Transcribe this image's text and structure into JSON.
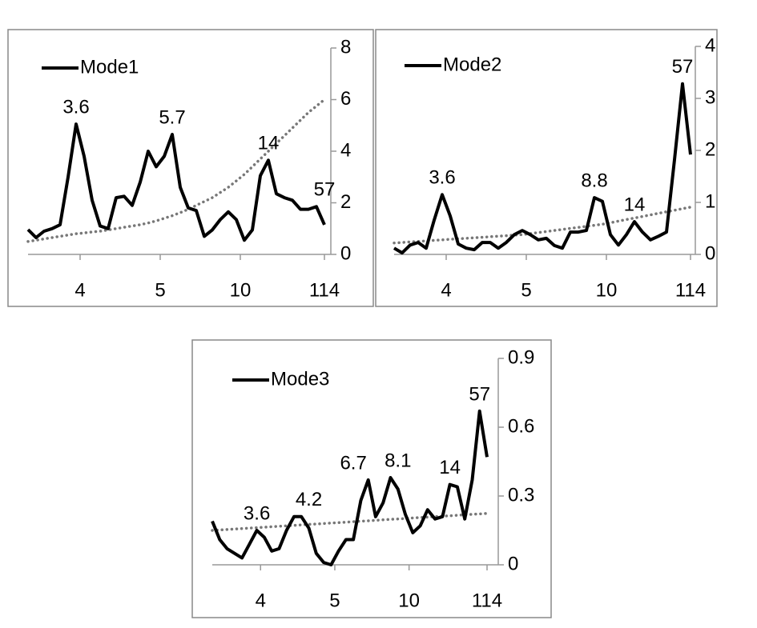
{
  "chart_data": [
    {
      "type": "line",
      "legend": "upper left",
      "xlim": [
        0,
        37
      ],
      "xticks": [
        {
          "value": 6.5,
          "label": "4"
        },
        {
          "value": 16.5,
          "label": "5"
        },
        {
          "value": 26.5,
          "label": "10"
        },
        {
          "value": 37,
          "label": "114"
        }
      ],
      "ylim": [
        0,
        8
      ],
      "yticks": [
        0,
        2,
        4,
        6,
        8
      ],
      "series": [
        {
          "name": "Mode1",
          "color": "#000000",
          "values": [
            0.96,
            0.65,
            0.9,
            1.0,
            1.15,
            3.0,
            5.05,
            3.8,
            2.1,
            1.1,
            1.0,
            2.2,
            2.25,
            1.9,
            2.8,
            4.0,
            3.4,
            3.8,
            4.65,
            2.6,
            1.8,
            1.7,
            0.7,
            0.95,
            1.35,
            1.65,
            1.35,
            0.55,
            0.95,
            3.05,
            3.65,
            2.35,
            2.2,
            2.1,
            1.75,
            1.75,
            1.85,
            1.15
          ]
        }
      ],
      "trend": {
        "color": "#777777",
        "values": [
          0.5,
          0.55,
          0.6,
          0.65,
          0.7,
          0.75,
          0.8,
          0.83,
          0.87,
          0.9,
          0.95,
          1.0,
          1.05,
          1.1,
          1.15,
          1.22,
          1.3,
          1.4,
          1.5,
          1.62,
          1.75,
          1.9,
          2.05,
          2.2,
          2.4,
          2.6,
          2.85,
          3.1,
          3.4,
          3.7,
          4.0,
          4.3,
          4.6,
          4.9,
          5.2,
          5.5,
          5.75,
          6.0
        ]
      },
      "annotations": [
        {
          "text": "3.6",
          "x": 6
        },
        {
          "text": "5.7",
          "x": 18
        },
        {
          "text": "14",
          "x": 30
        },
        {
          "text": "57",
          "x": 37
        }
      ]
    },
    {
      "type": "line",
      "legend": "upper left",
      "xlim": [
        0,
        37
      ],
      "xticks": [
        {
          "value": 6.5,
          "label": "4"
        },
        {
          "value": 16.5,
          "label": "5"
        },
        {
          "value": 26.5,
          "label": "10"
        },
        {
          "value": 37,
          "label": "114"
        }
      ],
      "ylim": [
        0,
        4
      ],
      "yticks": [
        0,
        1,
        2,
        3,
        4
      ],
      "series": [
        {
          "name": "Mode2",
          "color": "#000000",
          "values": [
            0.12,
            0.03,
            0.18,
            0.23,
            0.12,
            0.66,
            1.15,
            0.74,
            0.2,
            0.12,
            0.09,
            0.23,
            0.23,
            0.12,
            0.23,
            0.38,
            0.46,
            0.38,
            0.28,
            0.31,
            0.17,
            0.12,
            0.43,
            0.43,
            0.46,
            1.09,
            1.02,
            0.38,
            0.18,
            0.38,
            0.63,
            0.43,
            0.28,
            0.35,
            0.43,
            1.82,
            3.28,
            1.92
          ]
        }
      ],
      "trend": {
        "color": "#777777",
        "values": [
          0.22,
          0.23,
          0.24,
          0.25,
          0.26,
          0.27,
          0.28,
          0.29,
          0.3,
          0.31,
          0.32,
          0.33,
          0.34,
          0.35,
          0.36,
          0.37,
          0.38,
          0.4,
          0.42,
          0.44,
          0.46,
          0.48,
          0.5,
          0.52,
          0.54,
          0.56,
          0.58,
          0.61,
          0.64,
          0.67,
          0.7,
          0.73,
          0.76,
          0.79,
          0.82,
          0.85,
          0.88,
          0.91
        ]
      },
      "annotations": [
        {
          "text": "3.6",
          "x": 6
        },
        {
          "text": "8.8",
          "x": 25
        },
        {
          "text": "14",
          "x": 30
        },
        {
          "text": "57",
          "x": 36
        }
      ]
    },
    {
      "type": "line",
      "legend": "upper left",
      "xlim": [
        0,
        37
      ],
      "xticks": [
        {
          "value": 6.5,
          "label": "4"
        },
        {
          "value": 16.5,
          "label": "5"
        },
        {
          "value": 26.5,
          "label": "10"
        },
        {
          "value": 37,
          "label": "114"
        }
      ],
      "ylim": [
        0,
        0.9
      ],
      "yticks": [
        0,
        0.3,
        0.6,
        0.9
      ],
      "series": [
        {
          "name": "Mode3",
          "color": "#000000",
          "values": [
            0.19,
            0.11,
            0.07,
            0.05,
            0.03,
            0.09,
            0.15,
            0.12,
            0.06,
            0.07,
            0.15,
            0.21,
            0.21,
            0.16,
            0.05,
            0.01,
            0.0,
            0.06,
            0.11,
            0.11,
            0.28,
            0.37,
            0.21,
            0.27,
            0.38,
            0.33,
            0.22,
            0.14,
            0.17,
            0.24,
            0.2,
            0.21,
            0.35,
            0.34,
            0.2,
            0.37,
            0.67,
            0.47
          ]
        }
      ],
      "trend": {
        "color": "#777777",
        "values": [
          0.15,
          0.152,
          0.154,
          0.156,
          0.158,
          0.16,
          0.162,
          0.164,
          0.166,
          0.168,
          0.17,
          0.172,
          0.174,
          0.176,
          0.178,
          0.18,
          0.182,
          0.184,
          0.186,
          0.188,
          0.19,
          0.192,
          0.194,
          0.196,
          0.198,
          0.2,
          0.202,
          0.204,
          0.206,
          0.208,
          0.21,
          0.212,
          0.214,
          0.216,
          0.218,
          0.22,
          0.222,
          0.224
        ]
      },
      "annotations": [
        {
          "text": "3.6",
          "x": 6
        },
        {
          "text": "4.2",
          "x": 13
        },
        {
          "text": "6.7",
          "x": 19
        },
        {
          "text": "8.1",
          "x": 25
        },
        {
          "text": "14",
          "x": 32
        },
        {
          "text": "57",
          "x": 36
        }
      ]
    }
  ]
}
